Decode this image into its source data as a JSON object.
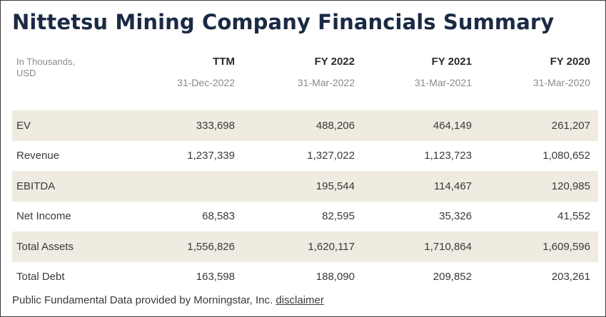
{
  "title": "Nittetsu Mining Company Financials Summary",
  "table": {
    "corner_label": "In Thousands,\nUSD",
    "columns": [
      {
        "period": "TTM",
        "date": "31-Dec-2022"
      },
      {
        "period": "FY 2022",
        "date": "31-Mar-2022"
      },
      {
        "period": "FY 2021",
        "date": "31-Mar-2021"
      },
      {
        "period": "FY 2020",
        "date": "31-Mar-2020"
      }
    ],
    "rows": [
      {
        "label": "EV",
        "values": [
          "333,698",
          "488,206",
          "464,149",
          "261,207"
        ]
      },
      {
        "label": "Revenue",
        "values": [
          "1,237,339",
          "1,327,022",
          "1,123,723",
          "1,080,652"
        ]
      },
      {
        "label": "EBITDA",
        "values": [
          "",
          "195,544",
          "114,467",
          "120,985"
        ]
      },
      {
        "label": "Net Income",
        "values": [
          "68,583",
          "82,595",
          "35,326",
          "41,552"
        ]
      },
      {
        "label": "Total Assets",
        "values": [
          "1,556,826",
          "1,620,117",
          "1,710,864",
          "1,609,596"
        ]
      },
      {
        "label": "Total Debt",
        "values": [
          "163,598",
          "188,090",
          "209,852",
          "203,261"
        ]
      }
    ]
  },
  "footer": {
    "text": "Public Fundamental Data provided by Morningstar, Inc. ",
    "link_label": "disclaimer"
  },
  "colors": {
    "title": "#1b2a44",
    "row_shade": "#efebe1",
    "muted_text": "#8a8a8a",
    "border": "#3c3c3c"
  }
}
